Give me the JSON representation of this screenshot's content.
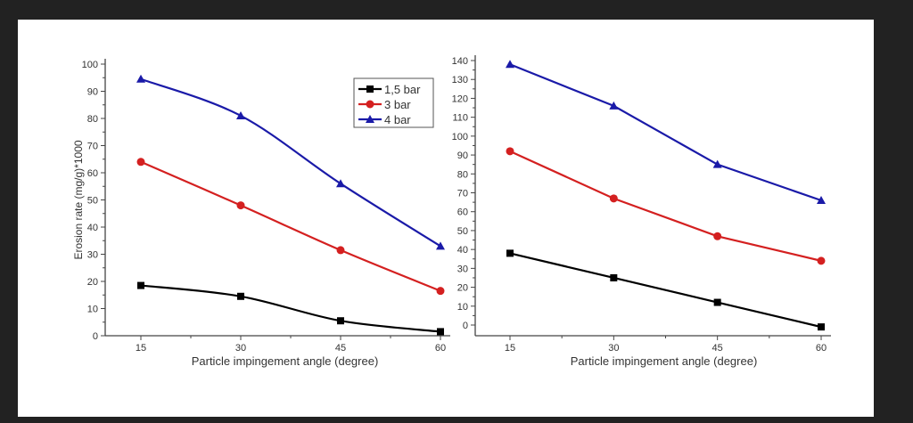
{
  "chart_data": [
    {
      "type": "line",
      "title": "",
      "xlabel": "Particle impingement angle (degree)",
      "ylabel": "Erosion rate (mg/g)*1000",
      "x": [
        15,
        30,
        45,
        60
      ],
      "xticks": [
        "15",
        "30",
        "45",
        "60"
      ],
      "ylim": [
        0,
        100
      ],
      "yticks": [
        "0",
        "10",
        "20",
        "30",
        "40",
        "50",
        "60",
        "70",
        "80",
        "90",
        "100"
      ],
      "legend_position": "top-right",
      "smooth": true,
      "series": [
        {
          "name": "1,5 bar",
          "color": "#000000",
          "marker": "square",
          "values": [
            18.5,
            14.5,
            5.5,
            1.5
          ]
        },
        {
          "name": "3 bar",
          "color": "#d42020",
          "marker": "circle",
          "values": [
            64,
            48,
            31.5,
            16.5
          ]
        },
        {
          "name": "4 bar",
          "color": "#1a1aa8",
          "marker": "triangle",
          "values": [
            94.5,
            81,
            56,
            33
          ]
        }
      ]
    },
    {
      "type": "line",
      "title": "",
      "xlabel": "Particle impingement angle (degree)",
      "ylabel": "",
      "x": [
        15,
        30,
        45,
        60
      ],
      "xticks": [
        "15",
        "30",
        "45",
        "60"
      ],
      "ylim": [
        -5,
        143
      ],
      "yticks": [
        "0",
        "10",
        "20",
        "30",
        "40",
        "50",
        "60",
        "70",
        "80",
        "90",
        "100",
        "110",
        "120",
        "130",
        "140"
      ],
      "smooth": false,
      "series": [
        {
          "name": "1,5 bar",
          "color": "#000000",
          "marker": "square",
          "values": [
            38,
            25,
            12,
            -1
          ]
        },
        {
          "name": "3 bar",
          "color": "#d42020",
          "marker": "circle",
          "values": [
            92,
            67,
            47,
            34
          ]
        },
        {
          "name": "4 bar",
          "color": "#1a1aa8",
          "marker": "triangle",
          "values": [
            138,
            116,
            85,
            66
          ]
        }
      ]
    }
  ]
}
